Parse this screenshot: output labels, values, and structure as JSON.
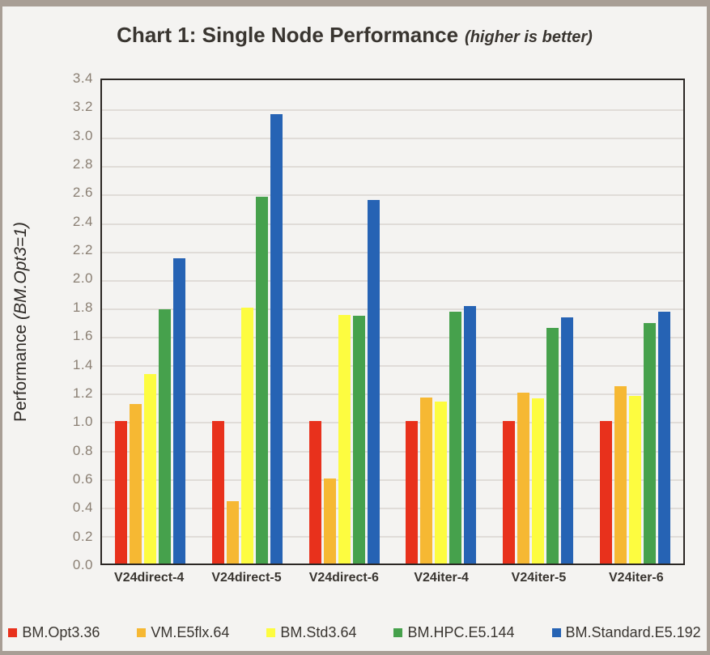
{
  "title": {
    "main": "Chart 1: Single Node Performance",
    "sub": "(higher is better)"
  },
  "yaxis": {
    "label_regular": "Performance ",
    "label_italic": "(BM.Opt3=1)",
    "ticks": [
      "0.0",
      "0.2",
      "0.4",
      "0.6",
      "0.8",
      "1.0",
      "1.2",
      "1.4",
      "1.6",
      "1.8",
      "2.0",
      "2.2",
      "2.4",
      "2.6",
      "2.8",
      "3.0",
      "3.2",
      "3.4"
    ]
  },
  "colors": {
    "red": "#e8311c",
    "orange": "#f6b833",
    "yellow": "#fdfc40",
    "green": "#46a14c",
    "blue": "#2663b4",
    "frame": "#a89e95",
    "gridline": "#e0dcd8",
    "background": "#f4f3f1"
  },
  "chart_data": {
    "type": "bar",
    "title": "Chart 1: Single Node Performance (higher is better)",
    "xlabel": "",
    "ylabel": "Performance (BM.Opt3=1)",
    "ylim": [
      0,
      3.4
    ],
    "grid": true,
    "legend_position": "bottom",
    "categories": [
      "V24direct-4",
      "V24direct-5",
      "V24direct-6",
      "V24iter-4",
      "V24iter-5",
      "V24iter-6"
    ],
    "series": [
      {
        "name": "BM.Opt3.36",
        "color": "#e8311c",
        "values": [
          1.0,
          1.0,
          1.0,
          1.0,
          1.0,
          1.0
        ]
      },
      {
        "name": "VM.E5flx.64",
        "color": "#f6b833",
        "values": [
          1.12,
          0.44,
          0.6,
          1.17,
          1.2,
          1.25
        ]
      },
      {
        "name": "BM.Std3.64",
        "color": "#fdfc40",
        "values": [
          1.33,
          1.8,
          1.75,
          1.14,
          1.16,
          1.18
        ]
      },
      {
        "name": "BM.HPC.E5.144",
        "color": "#46a14c",
        "values": [
          1.79,
          2.58,
          1.74,
          1.77,
          1.66,
          1.69
        ]
      },
      {
        "name": "BM.Standard.E5.192",
        "color": "#2663b4",
        "values": [
          2.15,
          3.16,
          2.56,
          1.81,
          1.73,
          1.77
        ]
      }
    ]
  }
}
